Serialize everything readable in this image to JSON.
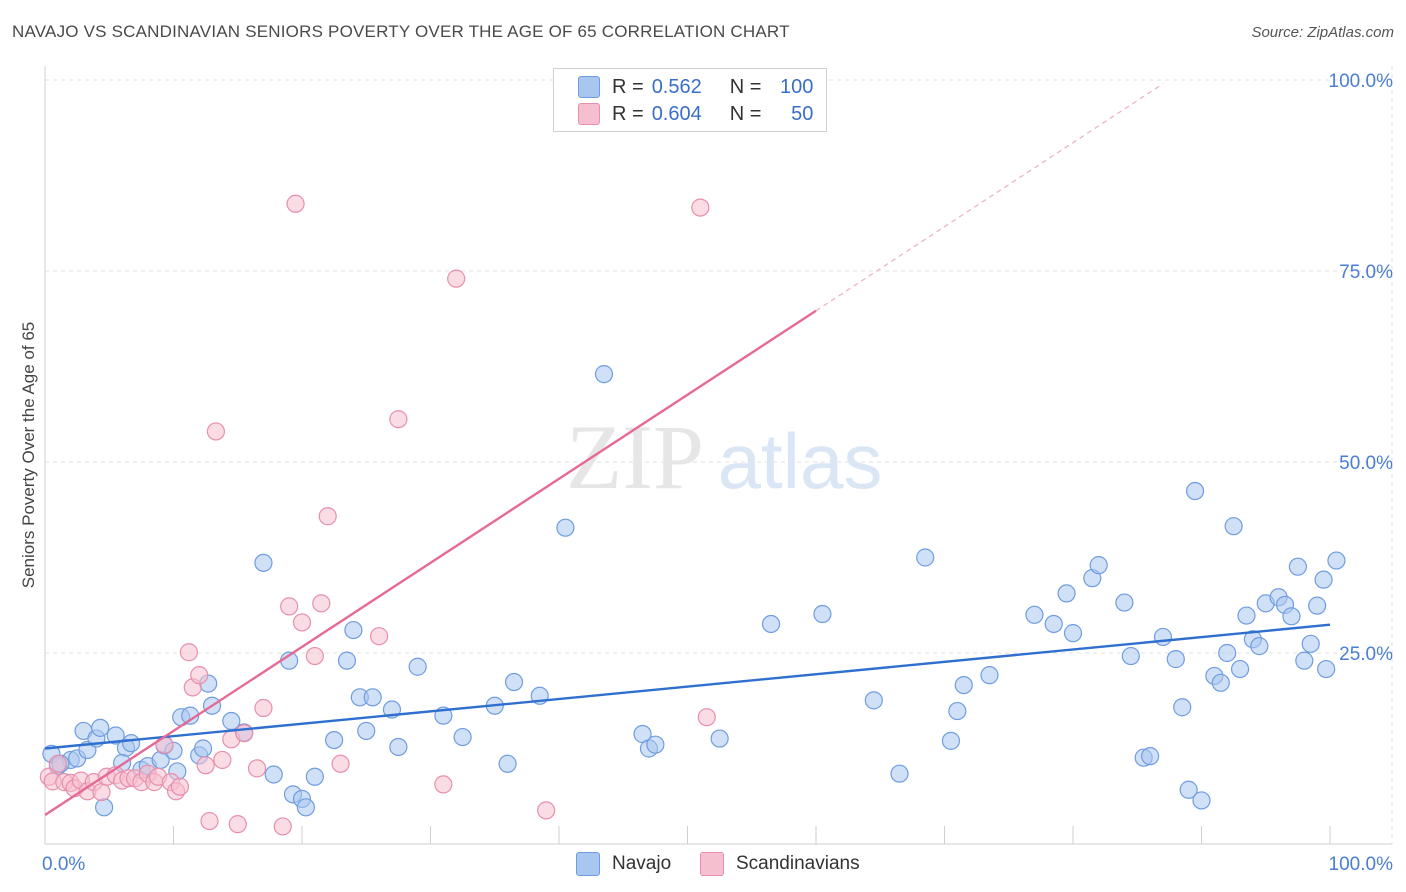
{
  "header": {
    "title": "NAVAJO VS SCANDINAVIAN SENIORS POVERTY OVER THE AGE OF 65 CORRELATION CHART",
    "source": "Source: ZipAtlas.com"
  },
  "watermark": {
    "zip": "ZIP",
    "atlas": "atlas"
  },
  "legend": {
    "rows": [
      {
        "r_label": "R =",
        "r_value": "0.562",
        "n_label": "N =",
        "n_value": "100",
        "color": "#a9c6f0",
        "border": "#6f9de0"
      },
      {
        "r_label": "R =",
        "r_value": "0.604",
        "n_label": "N =",
        "n_value": "50",
        "color": "#f6bfd0",
        "border": "#e88fac"
      }
    ]
  },
  "bottom_legend": {
    "items": [
      {
        "label": "Navajo",
        "color": "#a9c6f0",
        "border": "#6f9de0"
      },
      {
        "label": "Scandinavians",
        "color": "#f6bfd0",
        "border": "#e88fac"
      }
    ]
  },
  "chart_data": {
    "type": "scatter",
    "title": "NAVAJO VS SCANDINAVIAN SENIORS POVERTY OVER THE AGE OF 65 CORRELATION CHART",
    "xlabel": "",
    "ylabel": "Seniors Poverty Over the Age of 65",
    "xlim": [
      0,
      100
    ],
    "ylim": [
      0,
      100
    ],
    "x_tick_labels": [
      "0.0%",
      "100.0%"
    ],
    "y_tick_values": [
      25,
      50,
      75,
      100
    ],
    "y_tick_labels": [
      "25.0%",
      "50.0%",
      "75.0%",
      "100.0%"
    ],
    "grid": true,
    "legend_position": "top-center",
    "series": [
      {
        "name": "Navajo",
        "color": "#6f9de0",
        "fill": "#a9c6f0",
        "trend": {
          "x": [
            0,
            100
          ],
          "y": [
            12.5,
            28.7
          ],
          "color": "#2f6fcf"
        },
        "points": [
          [
            0.5,
            11.8
          ],
          [
            1,
            10.2
          ],
          [
            2,
            11.0
          ],
          [
            2.5,
            11.2
          ],
          [
            3,
            14.8
          ],
          [
            3.3,
            12.3
          ],
          [
            4,
            13.8
          ],
          [
            4.3,
            15.2
          ],
          [
            4.6,
            4.8
          ],
          [
            5.5,
            14.2
          ],
          [
            6.3,
            12.6
          ],
          [
            6.7,
            13.2
          ],
          [
            7.5,
            9.7
          ],
          [
            8,
            10.2
          ],
          [
            9,
            11.0
          ],
          [
            9.3,
            12.9
          ],
          [
            10,
            12.2
          ],
          [
            10.3,
            9.5
          ],
          [
            10.6,
            16.6
          ],
          [
            11.3,
            16.8
          ],
          [
            12,
            11.6
          ],
          [
            12.3,
            12.5
          ],
          [
            12.7,
            21.0
          ],
          [
            13,
            18.1
          ],
          [
            14.5,
            16.1
          ],
          [
            15.5,
            14.6
          ],
          [
            17,
            36.8
          ],
          [
            17.8,
            9.1
          ],
          [
            19,
            24.0
          ],
          [
            19.3,
            6.5
          ],
          [
            20,
            5.9
          ],
          [
            20.3,
            4.8
          ],
          [
            21,
            8.8
          ],
          [
            22.5,
            13.6
          ],
          [
            23.5,
            24.0
          ],
          [
            24,
            28.0
          ],
          [
            24.5,
            19.2
          ],
          [
            25,
            14.8
          ],
          [
            25.5,
            19.2
          ],
          [
            27,
            17.6
          ],
          [
            27.5,
            12.7
          ],
          [
            29,
            23.2
          ],
          [
            31,
            16.8
          ],
          [
            32.5,
            14.0
          ],
          [
            35,
            18.1
          ],
          [
            36,
            10.5
          ],
          [
            36.5,
            21.2
          ],
          [
            38.5,
            19.4
          ],
          [
            40.5,
            41.4
          ],
          [
            43.5,
            61.5
          ],
          [
            46.5,
            14.4
          ],
          [
            47,
            12.5
          ],
          [
            47.5,
            13.0
          ],
          [
            52.5,
            13.8
          ],
          [
            56.5,
            28.8
          ],
          [
            60.5,
            30.1
          ],
          [
            64.5,
            18.8
          ],
          [
            66.5,
            9.2
          ],
          [
            68.5,
            37.5
          ],
          [
            70.5,
            13.5
          ],
          [
            71,
            17.4
          ],
          [
            71.5,
            20.8
          ],
          [
            73.5,
            22.1
          ],
          [
            77,
            30.0
          ],
          [
            78.5,
            28.8
          ],
          [
            79.5,
            32.8
          ],
          [
            80,
            27.6
          ],
          [
            81.5,
            34.8
          ],
          [
            82,
            36.5
          ],
          [
            84,
            31.6
          ],
          [
            84.5,
            24.6
          ],
          [
            85.5,
            11.3
          ],
          [
            86,
            11.5
          ],
          [
            87,
            27.1
          ],
          [
            88,
            24.2
          ],
          [
            88.5,
            17.9
          ],
          [
            89,
            7.1
          ],
          [
            89.5,
            46.2
          ],
          [
            90,
            5.7
          ],
          [
            91,
            22.0
          ],
          [
            91.5,
            21.1
          ],
          [
            92,
            25.0
          ],
          [
            92.5,
            41.6
          ],
          [
            93,
            22.9
          ],
          [
            93.5,
            29.9
          ],
          [
            94,
            26.8
          ],
          [
            94.5,
            25.9
          ],
          [
            95,
            31.5
          ],
          [
            96,
            32.3
          ],
          [
            96.5,
            31.3
          ],
          [
            97,
            29.8
          ],
          [
            97.5,
            36.3
          ],
          [
            98,
            24.0
          ],
          [
            98.5,
            26.2
          ],
          [
            99,
            31.2
          ],
          [
            99.5,
            34.6
          ],
          [
            99.7,
            22.9
          ],
          [
            100.5,
            37.1
          ],
          [
            1.2,
            10.5
          ],
          [
            6,
            10.6
          ]
        ]
      },
      {
        "name": "Scandinavians",
        "color": "#e88fac",
        "fill": "#f6bfd0",
        "trend": {
          "x": [
            0,
            60
          ],
          "y": [
            3.8,
            69.8
          ],
          "color": "#e56a95",
          "dashed_extension": {
            "x": [
              60,
              87
            ],
            "y": [
              69.8,
              99.5
            ]
          }
        },
        "points": [
          [
            0.3,
            8.8
          ],
          [
            0.6,
            8.2
          ],
          [
            1,
            10.5
          ],
          [
            1.5,
            8.1
          ],
          [
            2,
            8.0
          ],
          [
            2.3,
            7.3
          ],
          [
            2.8,
            8.3
          ],
          [
            3.3,
            6.9
          ],
          [
            3.8,
            8.1
          ],
          [
            4.4,
            6.8
          ],
          [
            4.8,
            8.8
          ],
          [
            5.5,
            9.0
          ],
          [
            6,
            8.3
          ],
          [
            6.5,
            8.6
          ],
          [
            7,
            8.6
          ],
          [
            7.5,
            8.1
          ],
          [
            8,
            9.2
          ],
          [
            8.5,
            8.1
          ],
          [
            8.8,
            8.8
          ],
          [
            9.3,
            13.0
          ],
          [
            9.8,
            8.1
          ],
          [
            10.2,
            6.9
          ],
          [
            10.5,
            7.5
          ],
          [
            11.2,
            25.1
          ],
          [
            11.5,
            20.5
          ],
          [
            12,
            22.1
          ],
          [
            12.5,
            10.3
          ],
          [
            12.8,
            3.0
          ],
          [
            13.3,
            54.0
          ],
          [
            13.8,
            11.0
          ],
          [
            14.5,
            13.7
          ],
          [
            15,
            2.6
          ],
          [
            15.5,
            14.5
          ],
          [
            16.5,
            9.9
          ],
          [
            17,
            17.8
          ],
          [
            18.5,
            2.3
          ],
          [
            19,
            31.1
          ],
          [
            19.5,
            83.8
          ],
          [
            20,
            29.0
          ],
          [
            21,
            24.6
          ],
          [
            21.5,
            31.5
          ],
          [
            22,
            42.9
          ],
          [
            23,
            10.5
          ],
          [
            26,
            27.2
          ],
          [
            27.5,
            55.6
          ],
          [
            31,
            7.8
          ],
          [
            32,
            74.0
          ],
          [
            39,
            4.4
          ],
          [
            51.5,
            16.6
          ],
          [
            51,
            83.3
          ]
        ]
      }
    ]
  }
}
